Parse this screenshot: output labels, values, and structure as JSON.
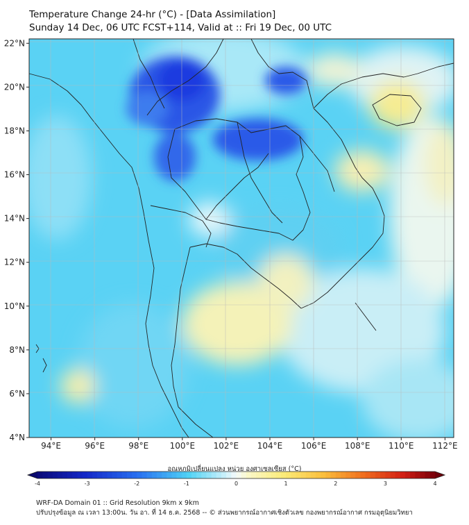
{
  "title": {
    "line1": "Temperature Change 24-hr (°C) - [Data Assimilation]",
    "line2": "Sunday 14 Dec, 06 UTC FCST+114, Valid at :: Fri 19 Dec, 00 UTC"
  },
  "axes": {
    "lat_labels": [
      "22°N",
      "20°N",
      "18°N",
      "16°N",
      "14°N",
      "12°N",
      "10°N",
      "8°N",
      "6°N",
      "4°N"
    ],
    "lon_labels": [
      "94°E",
      "96°E",
      "98°E",
      "100°E",
      "102°E",
      "104°E",
      "106°E",
      "108°E",
      "110°E",
      "112°E"
    ],
    "lat_range": [
      4,
      22.2
    ],
    "lon_range": [
      93,
      112.4
    ]
  },
  "colorbar": {
    "title": "อุณหภูมิเปลี่ยนแปลง หน่วย องศาเซลเซียส (°C)",
    "ticks": [
      "-4",
      "-3",
      "-2",
      "-1",
      "0",
      "1",
      "2",
      "3",
      "4"
    ],
    "range": [
      -4,
      4
    ]
  },
  "footer": {
    "line1": "WRF-DA Domain 01 :: Grid Resolution 9km x 9km",
    "line2": "ปรับปรุงข้อมูล ณ เวลา 13:00น. วัน อา. ที่ 14 ธ.ค. 2568 -- © ส่วนพยากรณ์อากาศเชิงตัวเลข กองพยากรณ์อากาศ กรมอุตุนิยมวิทยา"
  },
  "colors": {
    "background_blue": "#5ad2f4",
    "cold_core": "#1a3fe0",
    "warm": "#fdf5a8",
    "neutral": "#e6f7fb",
    "coast": "#222222",
    "grid": "#c8c8c8"
  }
}
